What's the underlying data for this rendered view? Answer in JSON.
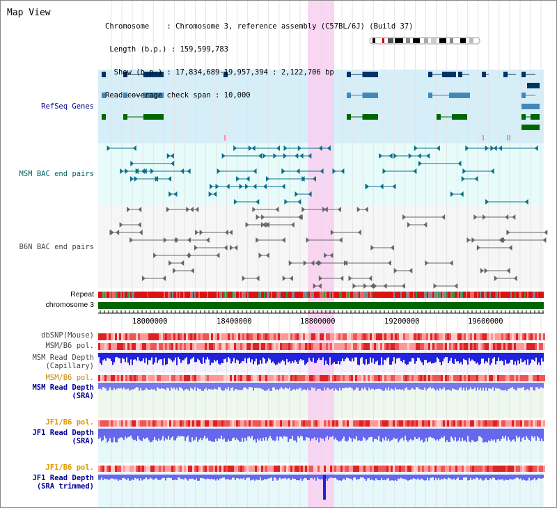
{
  "view_title": "Map View",
  "info": {
    "chromosome_line": "Chromosome    : Chromosome 3, reference assembly (C57BL/6J) (Build 37)",
    "length_line": " Length (b.p.) : 159,599,783",
    "show_line": "  Show (b.p.) : 17,834,689-19,957,394 : 2,122,706 bp",
    "coverage_line": "Read coverage check span : 10,000"
  },
  "tracks": {
    "refseq": "RefSeq Genes",
    "msm_bac": "MSM BAC end pairs",
    "b6n_bac": "B6N BAC end pairs",
    "repeat": "Repeat",
    "chromosome": "chromosome 3",
    "dbsnp": "dbSNP(Mouse)",
    "msm_b6_pol_1": "MSM/B6 pol.",
    "msm_read_depth_cap_1": "MSM Read Depth",
    "msm_read_depth_cap_2": "(Capillary)",
    "msm_b6_pol_2": "MSM/B6 pol.",
    "msm_read_depth_sra_1": "MSM Read Depth",
    "msm_read_depth_sra_2": "(SRA)",
    "jf1_b6_pol_1": "JF1/B6 pol.",
    "jf1_read_depth_sra_1": "JF1 Read Depth",
    "jf1_read_depth_sra_2": "(SRA)",
    "jf1_b6_pol_2": "JF1/B6 pol.",
    "jf1_read_depth_trim_1": "JF1 Read Depth",
    "jf1_read_depth_trim_2": "(SRA trimmed)"
  },
  "axis_ticks": [
    "18000000",
    "18400000",
    "18800000",
    "19200000",
    "19600000"
  ],
  "colors": {
    "refseq_label": "#000099",
    "msm_label": "#006666",
    "b6n_label": "#444444",
    "pol_msm": "#cc8800",
    "pol_jf1": "#dd9900",
    "depth_label": "#000099",
    "highlight": "#f8d0f0",
    "chromosome_bar": "#006600"
  }
}
